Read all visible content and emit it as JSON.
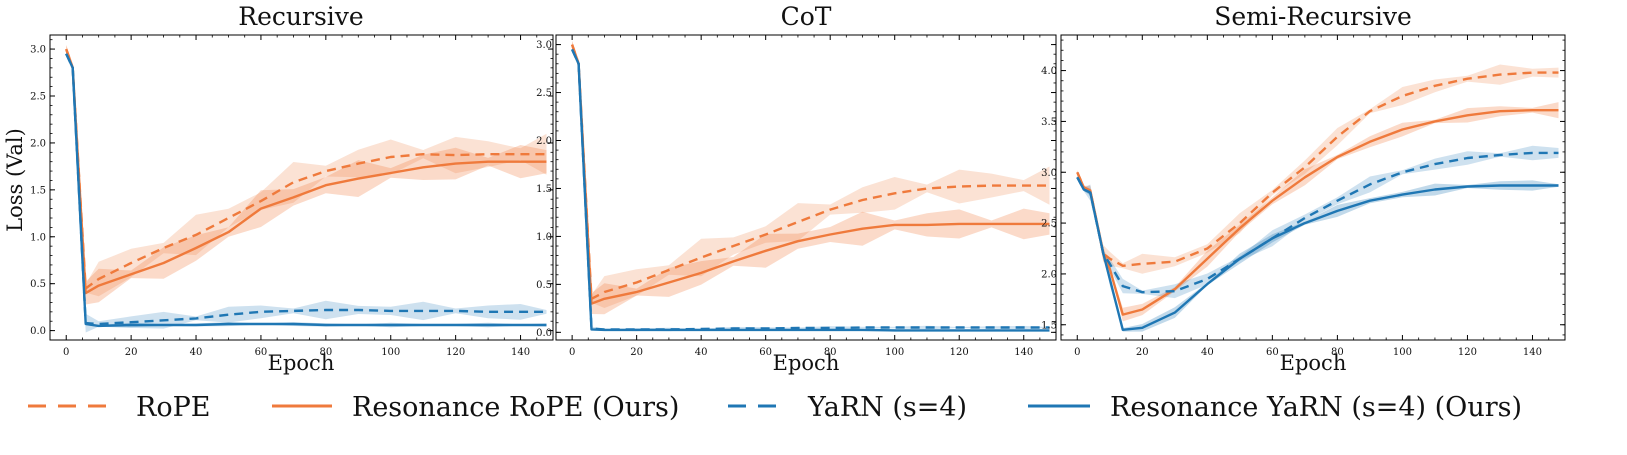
{
  "colors": {
    "rope": "#ef7a3c",
    "yarn": "#1f77b4",
    "rope_band": "#f6a27a",
    "yarn_band": "#7fb6dc"
  },
  "legend": {
    "items": [
      {
        "key": "rope",
        "label": "RoPE",
        "style": "dashed",
        "color": "#ef7a3c"
      },
      {
        "key": "res_rope",
        "label": "Resonance RoPE (Ours)",
        "style": "solid",
        "color": "#ef7a3c"
      },
      {
        "key": "yarn",
        "label": "YaRN (s=4)",
        "style": "dashed",
        "color": "#1f77b4"
      },
      {
        "key": "res_yarn",
        "label": "Resonance YaRN (s=4) (Ours)",
        "style": "solid",
        "color": "#1f77b4"
      }
    ]
  },
  "chart_data": [
    {
      "type": "line",
      "title": "Recursive",
      "xlabel": "Epoch",
      "ylabel": "Loss (Val)",
      "xlim": [
        -5,
        150
      ],
      "ylim": [
        -0.1,
        3.15
      ],
      "xticks": [
        0,
        20,
        40,
        60,
        80,
        100,
        120,
        140
      ],
      "yticks": [
        0.0,
        0.5,
        1.0,
        1.5,
        2.0,
        2.5,
        3.0
      ],
      "ytick_labels": [
        "0.0",
        "0.5",
        "1.0",
        "1.5",
        "2.0",
        "2.5",
        "3.0"
      ],
      "series": [
        {
          "name": "RoPE",
          "color": "#ef7a3c",
          "dashed": true,
          "band": 0.22,
          "x": [
            0,
            2,
            6,
            10,
            20,
            30,
            40,
            50,
            60,
            70,
            80,
            90,
            100,
            110,
            120,
            130,
            140,
            148
          ],
          "y": [
            3.0,
            2.8,
            0.45,
            0.55,
            0.72,
            0.88,
            1.02,
            1.2,
            1.38,
            1.58,
            1.7,
            1.78,
            1.85,
            1.88,
            1.87,
            1.88,
            1.88,
            1.88
          ]
        },
        {
          "name": "Resonance RoPE (Ours)",
          "color": "#ef7a3c",
          "dashed": false,
          "band": 0.2,
          "x": [
            0,
            2,
            6,
            10,
            20,
            30,
            40,
            50,
            60,
            70,
            80,
            90,
            100,
            110,
            120,
            130,
            140,
            148
          ],
          "y": [
            3.0,
            2.8,
            0.4,
            0.48,
            0.6,
            0.72,
            0.88,
            1.05,
            1.3,
            1.42,
            1.55,
            1.62,
            1.68,
            1.74,
            1.78,
            1.8,
            1.8,
            1.8
          ]
        },
        {
          "name": "YaRN (s=4)",
          "color": "#1f77b4",
          "dashed": true,
          "band": 0.1,
          "x": [
            0,
            2,
            6,
            10,
            20,
            30,
            40,
            50,
            60,
            70,
            80,
            90,
            100,
            110,
            120,
            130,
            140,
            148
          ],
          "y": [
            2.95,
            2.8,
            0.08,
            0.07,
            0.09,
            0.11,
            0.13,
            0.17,
            0.2,
            0.21,
            0.22,
            0.22,
            0.21,
            0.21,
            0.21,
            0.2,
            0.2,
            0.2
          ]
        },
        {
          "name": "Resonance YaRN (s=4) (Ours)",
          "color": "#1f77b4",
          "dashed": false,
          "band": 0.025,
          "x": [
            0,
            2,
            6,
            10,
            20,
            30,
            40,
            50,
            60,
            70,
            80,
            90,
            100,
            110,
            120,
            130,
            140,
            148
          ],
          "y": [
            2.95,
            2.8,
            0.07,
            0.05,
            0.06,
            0.06,
            0.06,
            0.07,
            0.07,
            0.07,
            0.06,
            0.06,
            0.06,
            0.06,
            0.06,
            0.06,
            0.06,
            0.06
          ]
        }
      ]
    },
    {
      "type": "line",
      "title": "CoT",
      "xlabel": "Epoch",
      "ylabel": "",
      "xlim": [
        -5,
        150
      ],
      "ylim": [
        -0.08,
        3.1
      ],
      "xticks": [
        0,
        20,
        40,
        60,
        80,
        100,
        120,
        140
      ],
      "yticks": [
        0.0,
        0.5,
        1.0,
        1.5,
        2.0,
        2.5,
        3.0
      ],
      "ytick_labels": [
        "0.0",
        "0.5",
        "1.0",
        "1.5",
        "2.0",
        "2.5",
        "3.0"
      ],
      "series": [
        {
          "name": "RoPE",
          "color": "#ef7a3c",
          "dashed": true,
          "band": 0.2,
          "x": [
            0,
            2,
            6,
            10,
            20,
            30,
            40,
            50,
            60,
            70,
            80,
            90,
            100,
            110,
            120,
            130,
            140,
            148
          ],
          "y": [
            3.0,
            2.8,
            0.35,
            0.42,
            0.52,
            0.65,
            0.78,
            0.9,
            1.02,
            1.15,
            1.28,
            1.38,
            1.45,
            1.5,
            1.52,
            1.53,
            1.53,
            1.53
          ]
        },
        {
          "name": "Resonance RoPE (Ours)",
          "color": "#ef7a3c",
          "dashed": false,
          "band": 0.18,
          "x": [
            0,
            2,
            6,
            10,
            20,
            30,
            40,
            50,
            60,
            70,
            80,
            90,
            100,
            110,
            120,
            130,
            140,
            148
          ],
          "y": [
            3.0,
            2.8,
            0.3,
            0.35,
            0.42,
            0.52,
            0.62,
            0.74,
            0.85,
            0.95,
            1.02,
            1.08,
            1.12,
            1.12,
            1.13,
            1.13,
            1.13,
            1.13
          ]
        },
        {
          "name": "YaRN (s=4)",
          "color": "#1f77b4",
          "dashed": true,
          "band": 0.02,
          "x": [
            0,
            2,
            6,
            10,
            20,
            30,
            40,
            50,
            60,
            70,
            80,
            90,
            100,
            110,
            120,
            130,
            140,
            148
          ],
          "y": [
            2.95,
            2.8,
            0.04,
            0.03,
            0.03,
            0.03,
            0.035,
            0.04,
            0.04,
            0.045,
            0.045,
            0.05,
            0.05,
            0.05,
            0.05,
            0.05,
            0.05,
            0.05
          ]
        },
        {
          "name": "Resonance YaRN (s=4) (Ours)",
          "color": "#1f77b4",
          "dashed": false,
          "band": 0.012,
          "x": [
            0,
            2,
            6,
            10,
            20,
            30,
            40,
            50,
            60,
            70,
            80,
            90,
            100,
            110,
            120,
            130,
            140,
            148
          ],
          "y": [
            2.95,
            2.8,
            0.03,
            0.025,
            0.025,
            0.025,
            0.025,
            0.025,
            0.025,
            0.025,
            0.025,
            0.025,
            0.02,
            0.02,
            0.02,
            0.02,
            0.02,
            0.02
          ]
        }
      ]
    },
    {
      "type": "line",
      "title": "Semi-Recursive",
      "xlabel": "Epoch",
      "ylabel": "",
      "xlim": [
        -5,
        150
      ],
      "ylim": [
        1.35,
        4.35
      ],
      "xticks": [
        0,
        20,
        40,
        60,
        80,
        100,
        120,
        140
      ],
      "yticks": [
        1.5,
        2.0,
        2.5,
        3.0,
        3.5,
        4.0
      ],
      "ytick_labels": [
        "1.5",
        "2.0",
        "2.5",
        "3.0",
        "3.5",
        "4.0"
      ],
      "series": [
        {
          "name": "RoPE",
          "color": "#ef7a3c",
          "dashed": true,
          "band": 0.1,
          "x": [
            0,
            2,
            4,
            8,
            10,
            14,
            20,
            30,
            40,
            50,
            60,
            70,
            80,
            90,
            100,
            110,
            120,
            130,
            140,
            148
          ],
          "y": [
            3.0,
            2.85,
            2.82,
            2.2,
            2.15,
            2.08,
            2.1,
            2.12,
            2.25,
            2.5,
            2.8,
            3.05,
            3.35,
            3.6,
            3.75,
            3.85,
            3.92,
            3.96,
            3.98,
            3.98
          ]
        },
        {
          "name": "Resonance RoPE (Ours)",
          "color": "#ef7a3c",
          "dashed": false,
          "band": 0.08,
          "x": [
            0,
            2,
            4,
            8,
            10,
            14,
            20,
            30,
            40,
            50,
            60,
            70,
            80,
            90,
            100,
            110,
            120,
            130,
            140,
            148
          ],
          "y": [
            3.0,
            2.85,
            2.82,
            2.2,
            2.05,
            1.6,
            1.65,
            1.85,
            2.15,
            2.45,
            2.72,
            2.95,
            3.15,
            3.3,
            3.42,
            3.5,
            3.56,
            3.6,
            3.61,
            3.61
          ]
        },
        {
          "name": "YaRN (s=4)",
          "color": "#1f77b4",
          "dashed": true,
          "band": 0.08,
          "x": [
            0,
            2,
            4,
            8,
            10,
            14,
            20,
            30,
            40,
            50,
            60,
            70,
            80,
            90,
            100,
            110,
            120,
            130,
            140,
            148
          ],
          "y": [
            2.95,
            2.83,
            2.8,
            2.2,
            2.1,
            1.88,
            1.82,
            1.83,
            1.95,
            2.15,
            2.35,
            2.55,
            2.72,
            2.88,
            3.0,
            3.08,
            3.14,
            3.17,
            3.19,
            3.19
          ]
        },
        {
          "name": "Resonance YaRN (s=4) (Ours)",
          "color": "#1f77b4",
          "dashed": false,
          "band": 0.06,
          "x": [
            0,
            2,
            4,
            8,
            10,
            14,
            20,
            30,
            40,
            50,
            60,
            70,
            80,
            90,
            100,
            110,
            120,
            130,
            140,
            148
          ],
          "y": [
            2.95,
            2.83,
            2.8,
            2.2,
            1.95,
            1.45,
            1.47,
            1.62,
            1.9,
            2.15,
            2.35,
            2.5,
            2.62,
            2.72,
            2.78,
            2.83,
            2.86,
            2.87,
            2.87,
            2.87
          ]
        }
      ]
    }
  ]
}
